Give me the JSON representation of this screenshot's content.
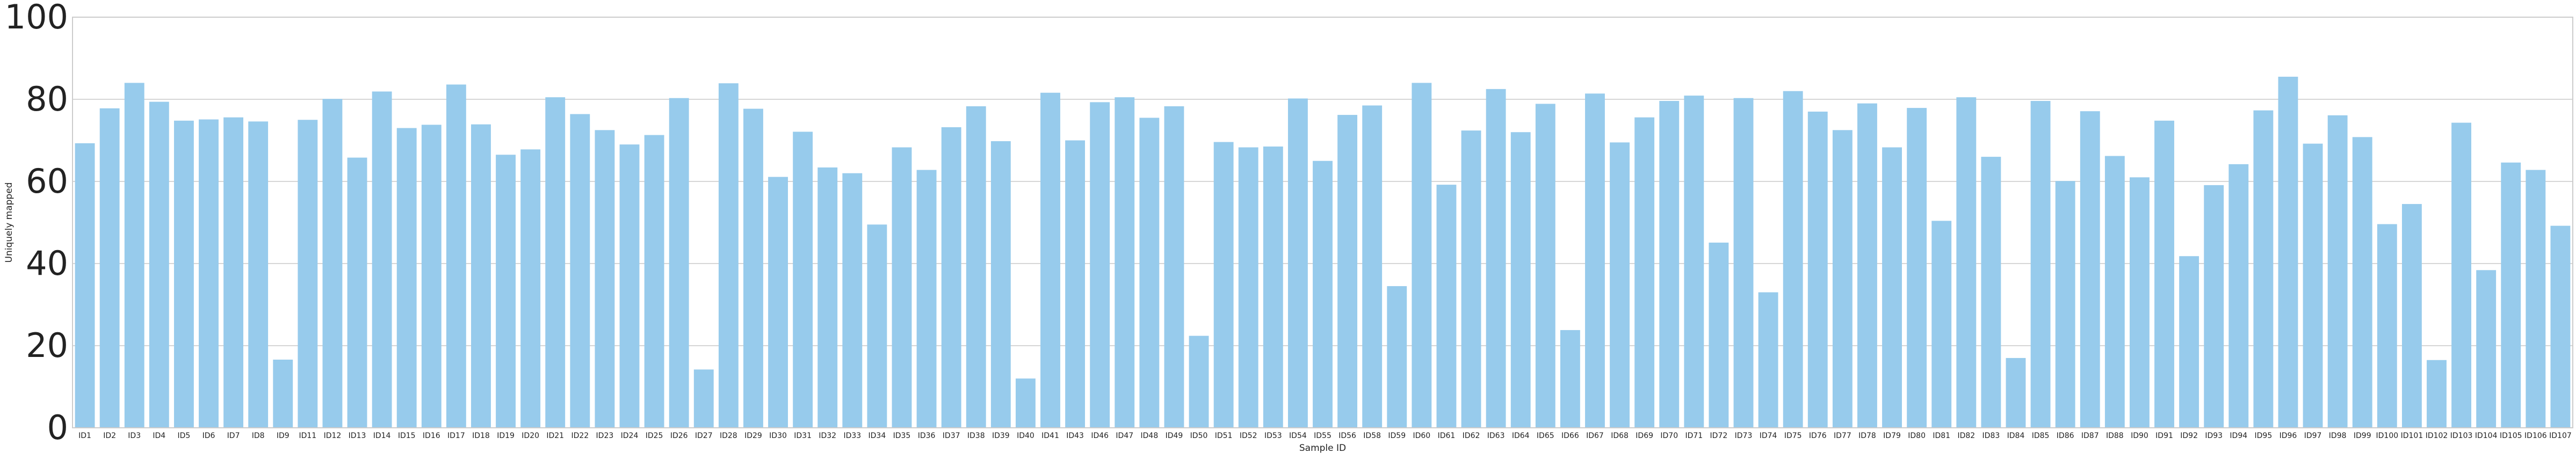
{
  "chart_data": {
    "type": "bar",
    "xlabel": "Sample ID",
    "ylabel": "Uniquely mapped",
    "ylim": [
      0,
      100
    ],
    "yticks": [
      0,
      20,
      40,
      60,
      80,
      100
    ],
    "grid": true,
    "bar_color": "#97cbec",
    "categories": [
      "ID1",
      "ID2",
      "ID3",
      "ID4",
      "ID5",
      "ID6",
      "ID7",
      "ID8",
      "ID9",
      "ID11",
      "ID12",
      "ID13",
      "ID14",
      "ID15",
      "ID16",
      "ID17",
      "ID18",
      "ID19",
      "ID20",
      "ID21",
      "ID22",
      "ID23",
      "ID24",
      "ID25",
      "ID26",
      "ID27",
      "ID28",
      "ID29",
      "ID30",
      "ID31",
      "ID32",
      "ID33",
      "ID34",
      "ID35",
      "ID36",
      "ID37",
      "ID38",
      "ID39",
      "ID40",
      "ID41",
      "ID43",
      "ID46",
      "ID47",
      "ID48",
      "ID49",
      "ID50",
      "ID51",
      "ID52",
      "ID53",
      "ID54",
      "ID55",
      "ID56",
      "ID58",
      "ID59",
      "ID60",
      "ID61",
      "ID62",
      "ID63",
      "ID64",
      "ID65",
      "ID66",
      "ID67",
      "ID68",
      "ID69",
      "ID70",
      "ID71",
      "ID72",
      "ID73",
      "ID74",
      "ID75",
      "ID76",
      "ID77",
      "ID78",
      "ID79",
      "ID80",
      "ID81",
      "ID82",
      "ID83",
      "ID84",
      "ID85",
      "ID86",
      "ID87",
      "ID88",
      "ID90",
      "ID91",
      "ID92",
      "ID93",
      "ID94",
      "ID95",
      "ID96",
      "ID97",
      "ID98",
      "ID99",
      "ID100",
      "ID101",
      "ID102",
      "ID103",
      "ID104",
      "ID105",
      "ID106",
      "ID107"
    ],
    "values": [
      69.3,
      77.8,
      84.0,
      79.4,
      74.8,
      75.1,
      75.6,
      74.6,
      16.6,
      75.0,
      80.1,
      65.8,
      81.9,
      73.0,
      73.8,
      83.6,
      73.9,
      66.5,
      67.8,
      80.5,
      76.4,
      72.5,
      69.0,
      71.3,
      80.3,
      14.2,
      83.9,
      77.7,
      61.1,
      72.1,
      63.4,
      62.0,
      49.5,
      68.3,
      62.8,
      73.2,
      78.3,
      69.8,
      12.0,
      81.6,
      70.0,
      79.3,
      80.5,
      75.5,
      78.3,
      22.4,
      69.6,
      68.3,
      68.5,
      80.2,
      65.0,
      76.2,
      78.5,
      34.5,
      84.0,
      59.2,
      72.4,
      82.5,
      72.0,
      78.9,
      23.8,
      81.4,
      69.5,
      75.6,
      79.6,
      80.9,
      45.1,
      80.3,
      33.0,
      82.0,
      77.0,
      72.5,
      79.0,
      68.3,
      77.9,
      50.4,
      80.5,
      66.0,
      17.0,
      79.6,
      60.1,
      77.1,
      66.2,
      61.0,
      74.8,
      41.8,
      59.1,
      64.2,
      77.3,
      85.5,
      69.2,
      76.1,
      70.8,
      49.6,
      54.5,
      16.5,
      74.3,
      38.4,
      64.6,
      62.8,
      49.2
    ]
  }
}
